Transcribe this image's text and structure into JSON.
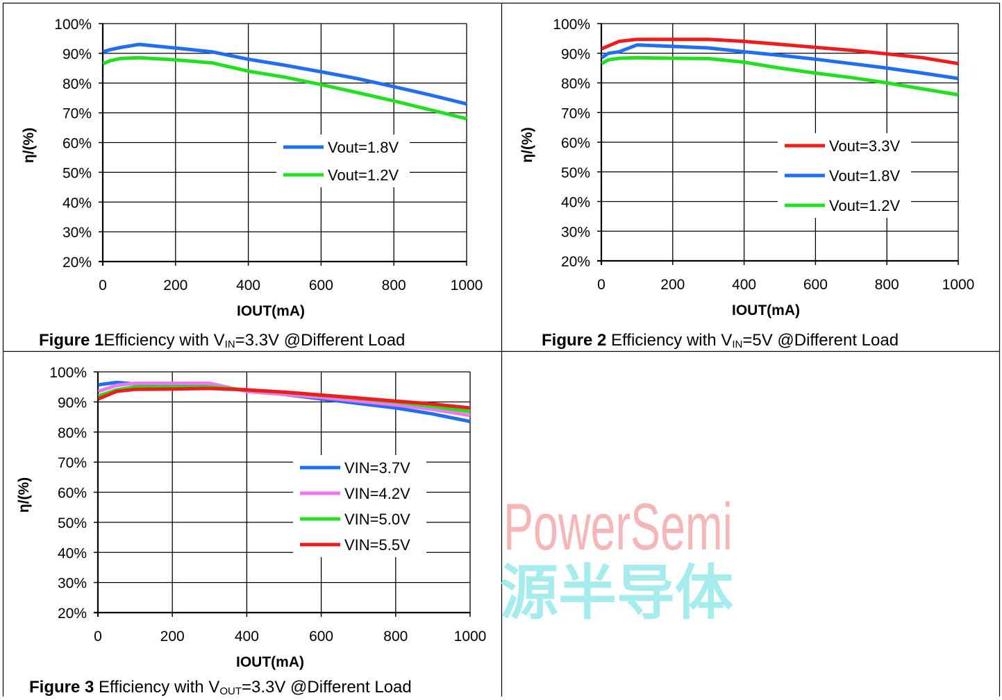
{
  "colors": {
    "blue": "#1f6ff0",
    "green": "#20e020",
    "red": "#ee1c1c",
    "magenta": "#f474f0",
    "grid": "#000000",
    "watermark_text": "#f4b6b6",
    "watermark_cjk": "#a6ecec"
  },
  "watermark": {
    "line1": "PowerSemi",
    "line2": "源半导体"
  },
  "figures": [
    {
      "caption_bold": "Figure 1",
      "caption_pre": "Efficiency with V",
      "caption_sub": "IN",
      "caption_post": "=3.3V @Different Load"
    },
    {
      "caption_bold": "Figure 2",
      "caption_pre": " Efficiency with V",
      "caption_sub": "IN",
      "caption_post": "=5V @Different Load"
    },
    {
      "caption_bold": "Figure 3",
      "caption_pre": " Efficiency with V",
      "caption_sub": "OUT",
      "caption_post": "=3.3V @Different Load"
    }
  ],
  "chart_data": [
    {
      "type": "line",
      "xlabel": "IOUT(mA)",
      "ylabel": "η/(%)",
      "xlim": [
        0,
        1000
      ],
      "ylim": [
        20,
        100
      ],
      "xticks": [
        0,
        200,
        400,
        600,
        800,
        1000
      ],
      "yticks": [
        20,
        30,
        40,
        50,
        60,
        70,
        80,
        90,
        100
      ],
      "ytick_labels": [
        "20%",
        "30%",
        "40%",
        "50%",
        "60%",
        "70%",
        "80%",
        "90%",
        "100%"
      ],
      "grid": true,
      "legend_position": "center-right",
      "series": [
        {
          "name": "Vout=1.8V",
          "color": "#1f6ff0",
          "x": [
            1,
            20,
            50,
            100,
            200,
            300,
            400,
            500,
            600,
            700,
            800,
            900,
            1000
          ],
          "y": [
            90.5,
            91.2,
            92,
            93,
            91.8,
            90.5,
            88,
            86,
            83.8,
            81.5,
            78.8,
            76,
            73
          ]
        },
        {
          "name": "Vout=1.2V",
          "color": "#20e020",
          "x": [
            1,
            20,
            50,
            100,
            200,
            300,
            400,
            500,
            600,
            700,
            800,
            900,
            1000
          ],
          "y": [
            86.5,
            87.5,
            88.3,
            88.5,
            87.8,
            86.8,
            84,
            82,
            79.5,
            76.8,
            74,
            71,
            68
          ]
        }
      ]
    },
    {
      "type": "line",
      "xlabel": "IOUT(mA)",
      "ylabel": "η/(%)",
      "xlim": [
        0,
        1000
      ],
      "ylim": [
        20,
        100
      ],
      "xticks": [
        0,
        200,
        400,
        600,
        800,
        1000
      ],
      "yticks": [
        20,
        30,
        40,
        50,
        60,
        70,
        80,
        90,
        100
      ],
      "ytick_labels": [
        "20%",
        "30%",
        "40%",
        "50%",
        "60%",
        "70%",
        "80%",
        "90%",
        "100%"
      ],
      "grid": true,
      "legend_position": "center-right",
      "series": [
        {
          "name": "Vout=3.3V",
          "color": "#ee1c1c",
          "x": [
            1,
            50,
            100,
            200,
            300,
            400,
            500,
            600,
            700,
            800,
            900,
            1000
          ],
          "y": [
            91.5,
            94,
            94.7,
            94.7,
            94.7,
            94,
            93,
            92,
            91,
            89.8,
            88.5,
            86.5
          ]
        },
        {
          "name": "Vout=1.8V",
          "color": "#1f6ff0",
          "x": [
            1,
            20,
            50,
            100,
            200,
            300,
            400,
            500,
            600,
            700,
            800,
            900,
            1000
          ],
          "y": [
            88.5,
            90,
            90.5,
            92.8,
            92.3,
            91.8,
            90.5,
            89.3,
            88,
            86.5,
            85,
            83.3,
            81.5
          ]
        },
        {
          "name": "Vout=1.2V",
          "color": "#20e020",
          "x": [
            1,
            20,
            50,
            100,
            200,
            300,
            400,
            500,
            600,
            700,
            800,
            900,
            1000
          ],
          "y": [
            86.5,
            87.8,
            88.3,
            88.5,
            88.3,
            88.2,
            87,
            85,
            83.3,
            81.8,
            80,
            78,
            76
          ]
        }
      ]
    },
    {
      "type": "line",
      "xlabel": "IOUT(mA)",
      "ylabel": "η/(%)",
      "xlim": [
        0,
        1000
      ],
      "ylim": [
        20,
        100
      ],
      "xticks": [
        0,
        200,
        400,
        600,
        800,
        1000
      ],
      "yticks": [
        20,
        30,
        40,
        50,
        60,
        70,
        80,
        90,
        100
      ],
      "ytick_labels": [
        "20%",
        "30%",
        "40%",
        "50%",
        "60%",
        "70%",
        "80%",
        "90%",
        "100%"
      ],
      "grid": true,
      "legend_position": "center-right",
      "series": [
        {
          "name": "VIN=3.7V",
          "color": "#1f6ff0",
          "x": [
            1,
            50,
            100,
            200,
            300,
            400,
            500,
            600,
            700,
            800,
            900,
            1000
          ],
          "y": [
            95.7,
            96.5,
            96,
            95.5,
            95,
            94,
            92.5,
            91,
            89.5,
            88,
            86,
            83.5
          ]
        },
        {
          "name": "VIN=4.2V",
          "color": "#f474f0",
          "x": [
            1,
            50,
            100,
            200,
            300,
            400,
            500,
            600,
            700,
            800,
            900,
            1000
          ],
          "y": [
            93.5,
            95.5,
            96.2,
            96.2,
            96.2,
            93.5,
            92.5,
            91.5,
            90.3,
            89,
            87.5,
            85.5
          ]
        },
        {
          "name": "VIN=5.0V",
          "color": "#20e020",
          "x": [
            1,
            50,
            100,
            200,
            300,
            400,
            500,
            600,
            700,
            800,
            900,
            1000
          ],
          "y": [
            92,
            94,
            95,
            95,
            95,
            94,
            93.2,
            92.2,
            91.2,
            90,
            88.5,
            86.8
          ]
        },
        {
          "name": "VIN=5.5V",
          "color": "#ee1c1c",
          "x": [
            1,
            50,
            100,
            200,
            300,
            400,
            500,
            600,
            700,
            800,
            900,
            1000
          ],
          "y": [
            91,
            93.5,
            94.2,
            94.3,
            94.5,
            94,
            93.3,
            92.3,
            91.3,
            90.3,
            89.3,
            88
          ]
        }
      ]
    }
  ]
}
